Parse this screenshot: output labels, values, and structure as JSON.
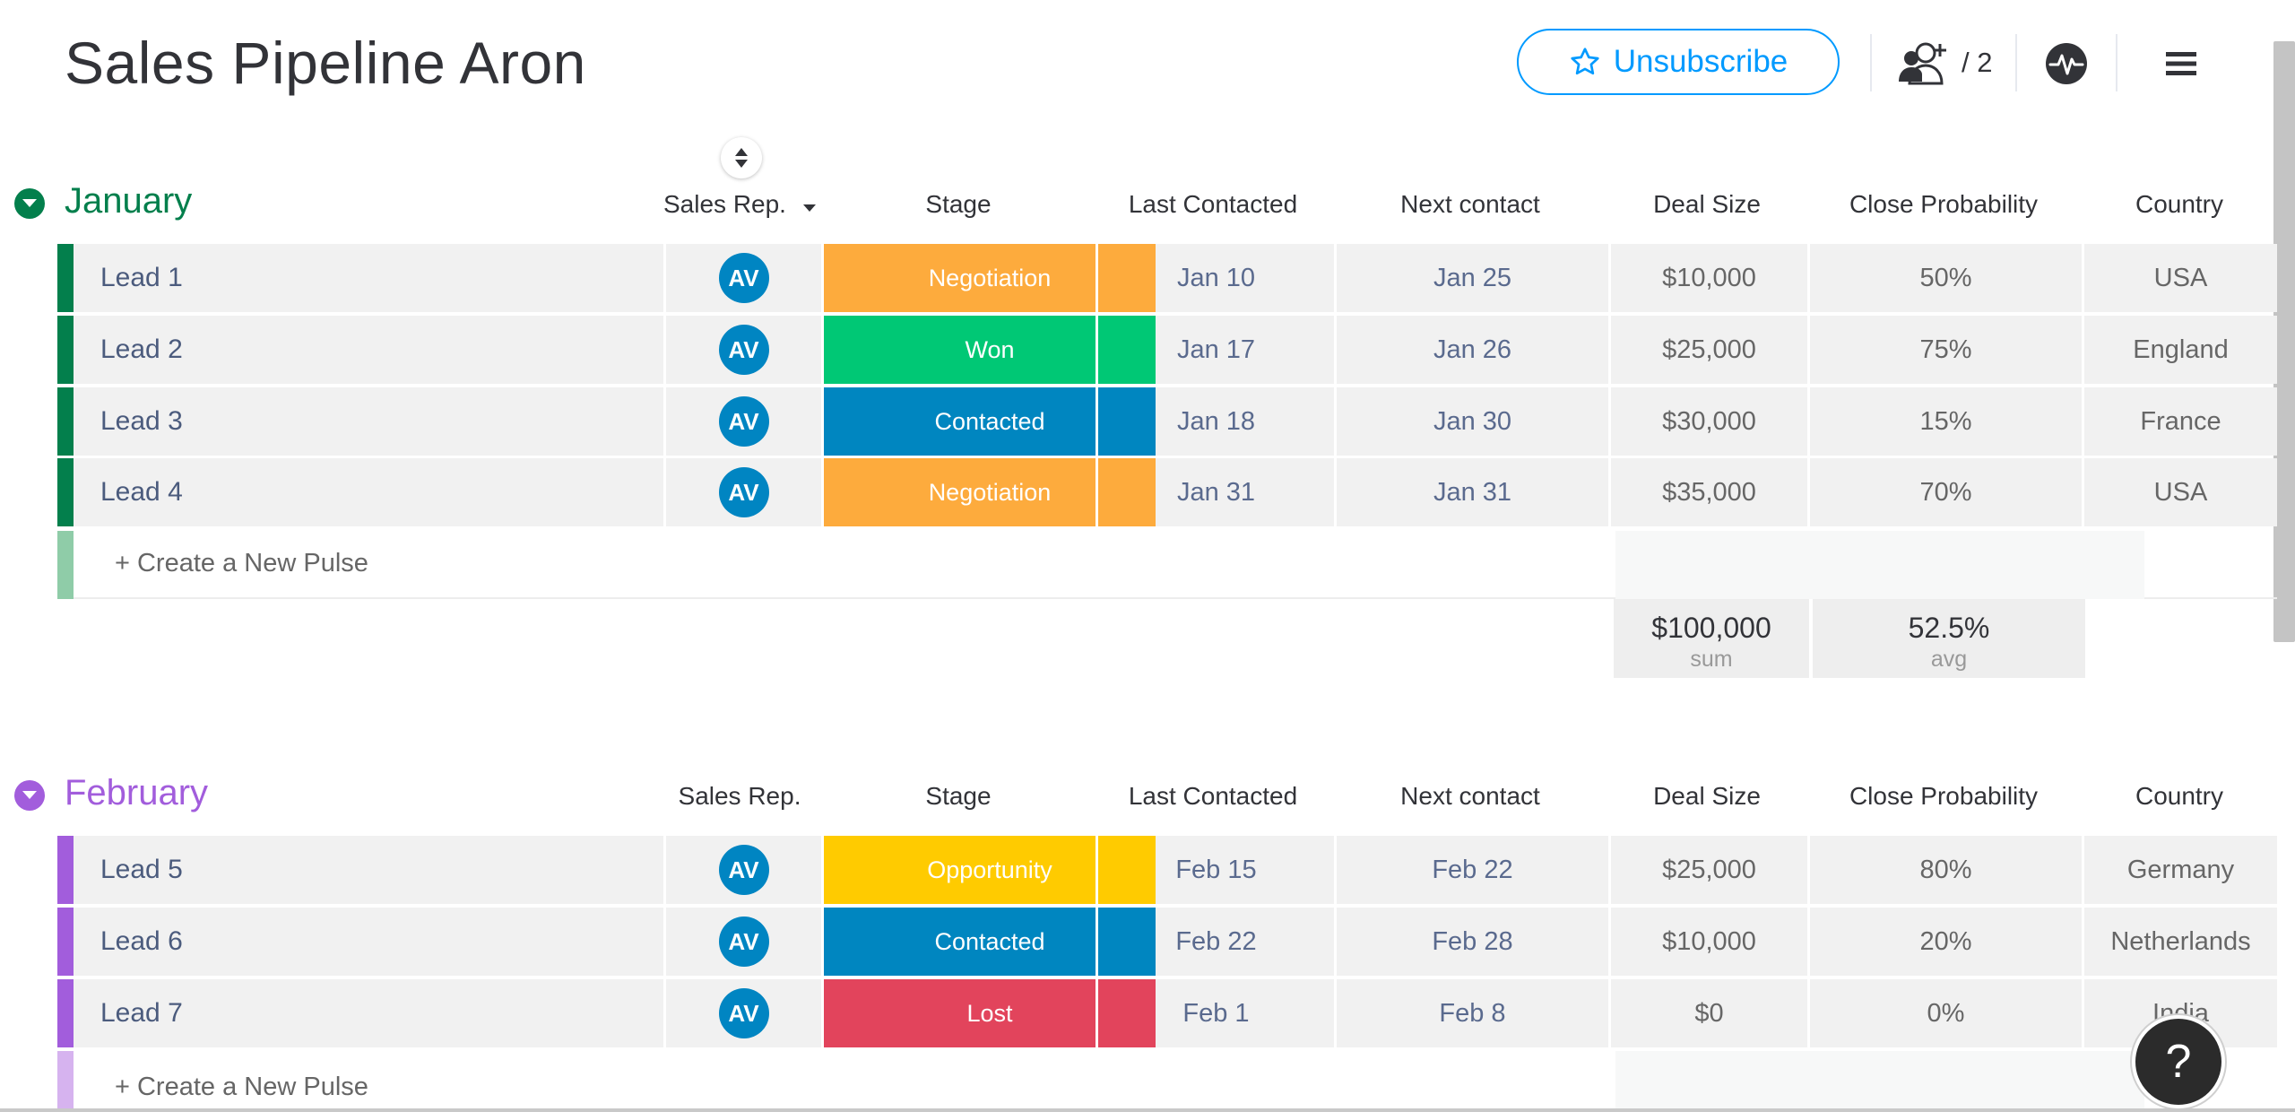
{
  "board": {
    "title": "Sales Pipeline Aron",
    "unsubscribe_label": "Unsubscribe",
    "subscribers_count": "/ 2",
    "icons": {
      "star": "star-icon",
      "subscribers": "add-subscriber-icon",
      "activity": "activity-icon",
      "menu": "hamburger-menu-icon",
      "help": "help-icon"
    }
  },
  "columns": [
    "Sales Rep.",
    "Stage",
    "Last Contacted",
    "Next contact",
    "Deal Size",
    "Close Probability",
    "Country"
  ],
  "colors": {
    "january": "#037f4c",
    "january_light": "#8fcca8",
    "february": "#a25ddc",
    "february_light": "#d6b3ef",
    "avatar": "#0085c2",
    "Negotiation": "#fdab3d",
    "Won": "#00c875",
    "Contacted": "#0086c0",
    "Opportunity": "#ffcb00",
    "Lost": "#e2445c"
  },
  "groups": [
    {
      "title": "January",
      "new_pulse_label": "+ Create a New Pulse",
      "rows": [
        {
          "name": "Lead 1",
          "rep": "AV",
          "stage": "Negotiation",
          "last": "Jan 10",
          "next": "Jan 25",
          "deal": "$10,000",
          "prob": "50%",
          "country": "USA"
        },
        {
          "name": "Lead 2",
          "rep": "AV",
          "stage": "Won",
          "last": "Jan 17",
          "next": "Jan 26",
          "deal": "$25,000",
          "prob": "75%",
          "country": "England"
        },
        {
          "name": "Lead 3",
          "rep": "AV",
          "stage": "Contacted",
          "last": "Jan 18",
          "next": "Jan 30",
          "deal": "$30,000",
          "prob": "15%",
          "country": "France"
        },
        {
          "name": "Lead 4",
          "rep": "AV",
          "stage": "Negotiation",
          "last": "Jan 31",
          "next": "Jan 31",
          "deal": "$35,000",
          "prob": "70%",
          "country": "USA"
        }
      ],
      "summary": {
        "deal_value": "$100,000",
        "deal_label": "sum",
        "prob_value": "52.5%",
        "prob_label": "avg"
      }
    },
    {
      "title": "February",
      "new_pulse_label": "+ Create a New Pulse",
      "rows": [
        {
          "name": "Lead 5",
          "rep": "AV",
          "stage": "Opportunity",
          "last": "Feb 15",
          "next": "Feb 22",
          "deal": "$25,000",
          "prob": "80%",
          "country": "Germany"
        },
        {
          "name": "Lead 6",
          "rep": "AV",
          "stage": "Contacted",
          "last": "Feb 22",
          "next": "Feb 28",
          "deal": "$10,000",
          "prob": "20%",
          "country": "Netherlands"
        },
        {
          "name": "Lead 7",
          "rep": "AV",
          "stage": "Lost",
          "last": "Feb 1",
          "next": "Feb 8",
          "deal": "$0",
          "prob": "0%",
          "country": "India"
        }
      ]
    }
  ],
  "help_label": "?"
}
